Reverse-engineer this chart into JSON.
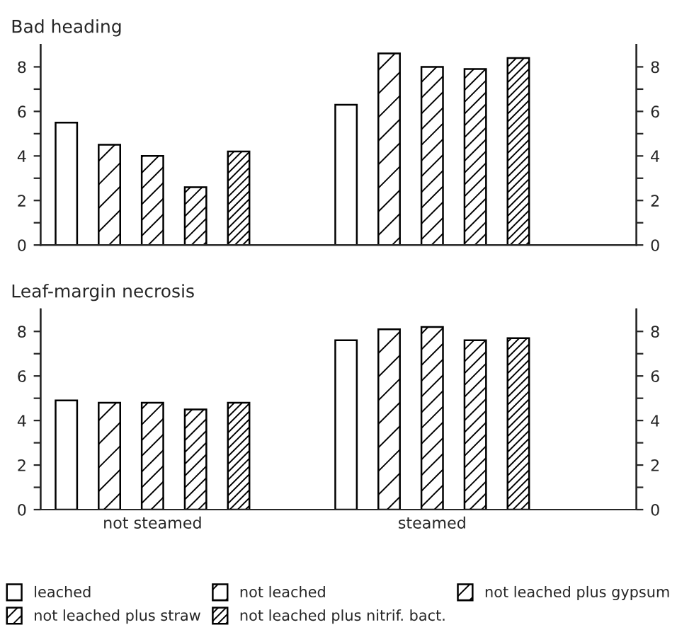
{
  "chart_data": [
    {
      "type": "bar",
      "title": "Bad heading",
      "categories": [
        null,
        null
      ],
      "tick_labels": "y",
      "grid": false,
      "ylim": [
        0,
        9
      ],
      "yticks": [
        0,
        {
          "value": 1,
          "label": null
        },
        2,
        {
          "value": 3,
          "label": null
        },
        4,
        {
          "value": 5,
          "label": null
        },
        6,
        {
          "value": 7,
          "label": null
        },
        8
      ],
      "y2lim": [
        0,
        9
      ],
      "y2ticks": [
        0,
        {
          "value": 1,
          "label": null
        },
        2,
        {
          "value": 3,
          "label": null
        },
        4,
        {
          "value": 5,
          "label": null
        },
        6,
        {
          "value": 7,
          "label": null
        },
        8
      ],
      "series": [
        {
          "values": [
            5.5,
            6.3
          ]
        },
        {
          "values": [
            4.5,
            8.6
          ]
        },
        {
          "values": [
            4.0,
            8.0
          ]
        },
        {
          "values": [
            2.6,
            7.9
          ]
        },
        {
          "values": [
            4.2,
            8.4
          ]
        }
      ]
    },
    {
      "type": "bar",
      "title": "Leaf-margin necrosis",
      "categories": [
        "not steamed",
        "steamed"
      ],
      "legend": "bottom",
      "grid": false,
      "ylim": [
        0,
        9
      ],
      "yticks": [
        0,
        {
          "value": 1,
          "label": null
        },
        2,
        {
          "value": 3,
          "label": null
        },
        4,
        {
          "value": 5,
          "label": null
        },
        6,
        {
          "value": 7,
          "label": null
        },
        8
      ],
      "y2lim": [
        0,
        9
      ],
      "y2ticks": [
        0,
        {
          "value": 1,
          "label": null
        },
        2,
        {
          "value": 3,
          "label": null
        },
        4,
        {
          "value": 5,
          "label": null
        },
        6,
        {
          "value": 7,
          "label": null
        },
        8
      ],
      "series": [
        {
          "name": "leached",
          "values": [
            4.9,
            7.6
          ]
        },
        {
          "name": "not leached",
          "values": [
            4.8,
            8.1
          ]
        },
        {
          "name": "not leached plus gypsum",
          "values": [
            4.8,
            8.2
          ]
        },
        {
          "name": "not leached plus straw",
          "values": [
            4.5,
            7.6
          ]
        },
        {
          "name": "not leached plus nitrif. bact.",
          "values": [
            4.8,
            7.7
          ]
        }
      ]
    }
  ]
}
